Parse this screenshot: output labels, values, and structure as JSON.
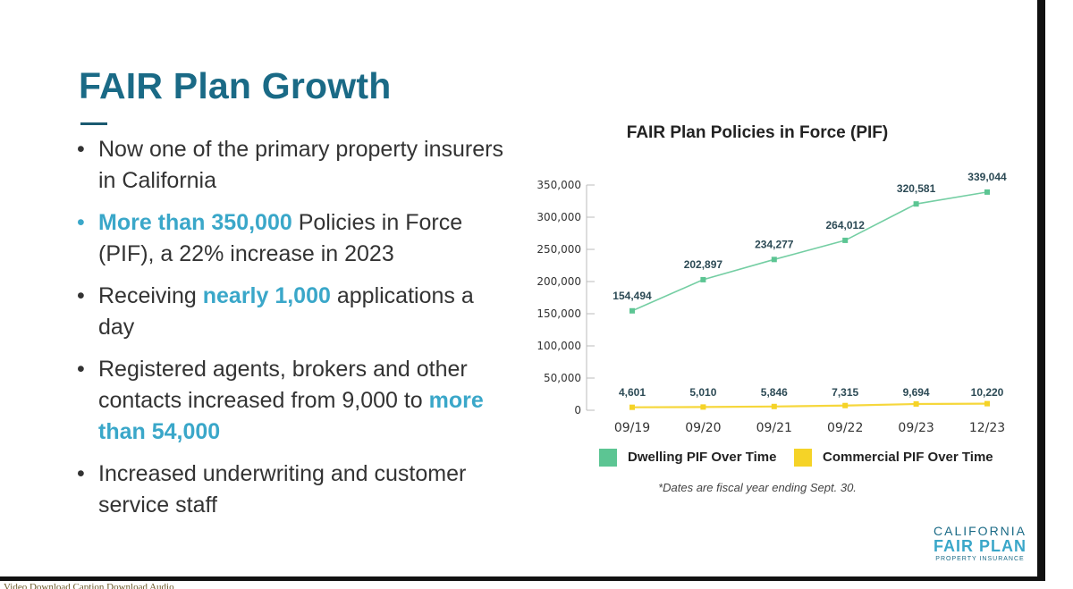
{
  "slide": {
    "title": "FAIR Plan Growth",
    "bullets": [
      {
        "text": "Now one of the primary property insurers in California"
      },
      {
        "highlight": "More than 350,000",
        "rest": " Policies in Force (PIF), a 22% increase in 2023"
      },
      {
        "before": "Receiving ",
        "highlight": "nearly 1,000",
        "after": " applications a day"
      },
      {
        "before": "Registered agents, brokers and other contacts increased from 9,000 to ",
        "highlight": "more than 54,000"
      },
      {
        "text": "Increased underwriting and customer service staff"
      }
    ]
  },
  "chart_data": {
    "type": "line",
    "title": "FAIR Plan Policies in Force (PIF)",
    "categories": [
      "09/19",
      "09/20",
      "09/21",
      "09/22",
      "09/23",
      "12/23"
    ],
    "series": [
      {
        "name": "Dwelling PIF Over Time",
        "color": "#5cc593",
        "values": [
          154494,
          202897,
          234277,
          264012,
          320581,
          339044
        ],
        "labels": [
          "154,494",
          "202,897",
          "234,277",
          "264,012",
          "320,581",
          "339,044"
        ]
      },
      {
        "name": "Commercial PIF Over Time",
        "color": "#f5d327",
        "values": [
          4601,
          5010,
          5846,
          7315,
          9694,
          10220
        ],
        "labels": [
          "4,601",
          "5,010",
          "5,846",
          "7,315",
          "9,694",
          "10,220"
        ]
      }
    ],
    "ylim": [
      0,
      350000
    ],
    "yticks": [
      0,
      50000,
      100000,
      150000,
      200000,
      250000,
      300000,
      350000
    ],
    "ytick_labels": [
      "0",
      "50,000",
      "100,000",
      "150,000",
      "200,000",
      "250,000",
      "300,000",
      "350,000"
    ],
    "legend_position": "bottom",
    "grid": false,
    "footnote": "*Dates are fiscal year ending Sept. 30."
  },
  "logo": {
    "line1": "CALIFORNIA",
    "line2": "FAIR PLAN",
    "line3": "PROPERTY INSURANCE"
  },
  "caption_strip": "Video Download Caption Download Audio"
}
